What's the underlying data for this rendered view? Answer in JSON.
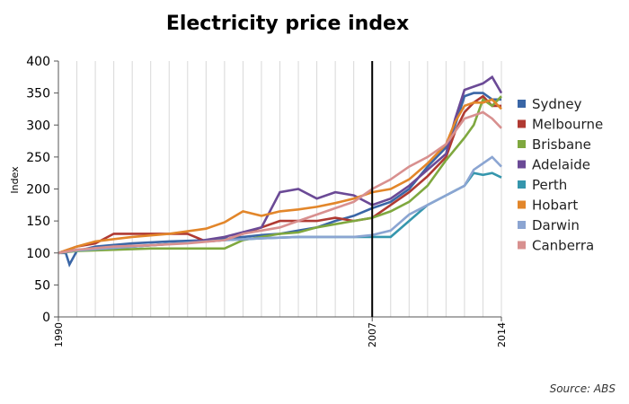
{
  "chart_data": {
    "type": "line",
    "title": "Electricity price index",
    "xlabel": "",
    "ylabel": "Index",
    "ylim": [
      0,
      400
    ],
    "xlim": [
      1990,
      2014
    ],
    "yticks": [
      0,
      50,
      100,
      150,
      200,
      250,
      300,
      350,
      400
    ],
    "xticks": [
      "1990",
      "2007",
      "2014"
    ],
    "marker_x": 2007,
    "grid": "vertical",
    "legend_position": "right",
    "source": "Source: ABS",
    "series": [
      {
        "name": "Sydney",
        "color": "#3a66a6",
        "x": [
          1990,
          1990.4,
          1990.6,
          1991,
          1992,
          1994,
          1996,
          1998,
          1999,
          2001,
          2002,
          2003,
          2004,
          2005,
          2006,
          2007,
          2008,
          2009,
          2010,
          2011,
          2011.5,
          2012,
          2012.5,
          2013,
          2013.5,
          2014
        ],
        "y": [
          100,
          100,
          82,
          103,
          110,
          115,
          118,
          120,
          122,
          128,
          130,
          135,
          140,
          150,
          158,
          170,
          180,
          200,
          235,
          265,
          300,
          345,
          350,
          350,
          340,
          340
        ]
      },
      {
        "name": "Melbourne",
        "color": "#b03a32",
        "x": [
          1990,
          1991,
          1992,
          1993,
          1995,
          1997,
          1998,
          1999,
          2000,
          2001,
          2002,
          2003,
          2004,
          2005,
          2006,
          2007,
          2008,
          2009,
          2010,
          2011,
          2011.5,
          2012,
          2012.5,
          2013,
          2013.5,
          2014
        ],
        "y": [
          100,
          110,
          115,
          130,
          130,
          130,
          118,
          120,
          130,
          140,
          150,
          150,
          150,
          155,
          150,
          155,
          175,
          195,
          220,
          250,
          290,
          320,
          335,
          345,
          330,
          330
        ]
      },
      {
        "name": "Brisbane",
        "color": "#7fa83f",
        "x": [
          1990,
          1991,
          1993,
          1995,
          1997,
          1999,
          2000,
          2001,
          2002,
          2003,
          2004,
          2005,
          2006,
          2007,
          2008,
          2009,
          2010,
          2011,
          2012,
          2012.5,
          2013,
          2013.5,
          2014
        ],
        "y": [
          100,
          103,
          105,
          107,
          107,
          107,
          120,
          125,
          130,
          132,
          140,
          145,
          150,
          155,
          165,
          180,
          205,
          245,
          280,
          300,
          340,
          330,
          345
        ]
      },
      {
        "name": "Adelaide",
        "color": "#6b4a96",
        "x": [
          1990,
          1991,
          1993,
          1995,
          1997,
          1999,
          2001,
          2002,
          2003,
          2004,
          2005,
          2006,
          2007,
          2008,
          2009,
          2010,
          2011,
          2011.5,
          2012,
          2012.5,
          2013,
          2013.5,
          2014
        ],
        "y": [
          100,
          105,
          108,
          112,
          116,
          125,
          140,
          195,
          200,
          185,
          195,
          190,
          175,
          185,
          205,
          230,
          255,
          310,
          355,
          360,
          365,
          375,
          350
        ]
      },
      {
        "name": "Perth",
        "color": "#3596ad",
        "x": [
          1990,
          1991,
          1993,
          1995,
          1997,
          1999,
          2001,
          2003,
          2005,
          2006,
          2007,
          2008,
          2009,
          2010,
          2011,
          2012,
          2012.5,
          2013,
          2013.5,
          2014
        ],
        "y": [
          100,
          104,
          108,
          112,
          116,
          120,
          123,
          125,
          125,
          125,
          125,
          125,
          150,
          175,
          190,
          205,
          225,
          222,
          225,
          218
        ]
      },
      {
        "name": "Hobart",
        "color": "#e2862a",
        "x": [
          1990,
          1991,
          1992,
          1994,
          1996,
          1998,
          1999,
          2000,
          2001,
          2002,
          2003,
          2004,
          2005,
          2006,
          2007,
          2008,
          2009,
          2010,
          2011,
          2011.5,
          2012,
          2012.5,
          2013,
          2013.5,
          2014
        ],
        "y": [
          100,
          110,
          118,
          125,
          130,
          138,
          148,
          165,
          158,
          165,
          168,
          172,
          178,
          185,
          195,
          200,
          215,
          240,
          270,
          305,
          330,
          335,
          335,
          340,
          325
        ]
      },
      {
        "name": "Darwin",
        "color": "#8ba5d2",
        "x": [
          1990,
          1991,
          1993,
          1995,
          1997,
          1999,
          2001,
          2003,
          2005,
          2006,
          2007,
          2008,
          2009,
          2010,
          2011,
          2012,
          2012.5,
          2013,
          2013.5,
          2014
        ],
        "y": [
          100,
          104,
          108,
          112,
          116,
          120,
          123,
          125,
          125,
          125,
          128,
          135,
          160,
          175,
          190,
          205,
          230,
          240,
          250,
          235
        ]
      },
      {
        "name": "Canberra",
        "color": "#d8908f",
        "x": [
          1990,
          1991,
          1993,
          1995,
          1997,
          1999,
          2000,
          2001,
          2002,
          2003,
          2004,
          2005,
          2006,
          2007,
          2008,
          2009,
          2010,
          2011,
          2011.5,
          2012,
          2012.5,
          2013,
          2013.5,
          2014
        ],
        "y": [
          100,
          105,
          110,
          112,
          115,
          120,
          130,
          135,
          140,
          150,
          160,
          170,
          180,
          200,
          215,
          235,
          250,
          270,
          290,
          310,
          315,
          320,
          310,
          295
        ]
      }
    ]
  }
}
